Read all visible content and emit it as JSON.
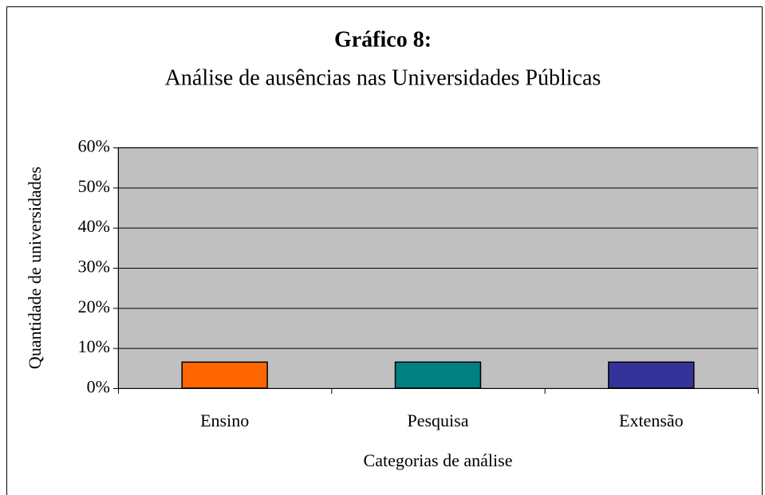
{
  "chart_data": {
    "type": "bar",
    "title": "Gráfico 8:",
    "subtitle": "Análise de ausências nas Universidades Públicas",
    "x_label": "Categorias de análise",
    "y_label": "Quantidade de universidades",
    "categories": [
      "Ensino",
      "Pesquisa",
      "Extensão"
    ],
    "values": [
      6.5,
      6.5,
      6.5
    ],
    "colors": [
      "#ff6600",
      "#008080",
      "#333399"
    ],
    "ylim": [
      0,
      60
    ],
    "yticks": [
      {
        "value": 0,
        "label": "0%"
      },
      {
        "value": 10,
        "label": "10%"
      },
      {
        "value": 20,
        "label": "20%"
      },
      {
        "value": 30,
        "label": "30%"
      },
      {
        "value": 40,
        "label": "40%"
      },
      {
        "value": 50,
        "label": "50%"
      },
      {
        "value": 60,
        "label": "60%"
      }
    ],
    "grid": true
  }
}
